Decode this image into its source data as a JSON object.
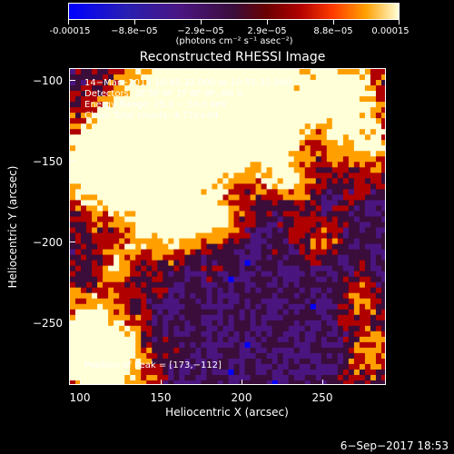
{
  "colorbar": {
    "tick_labels": [
      "-0.00015",
      "−8.8e−05",
      "−2.9e−05",
      "2.9e−05",
      "8.8e−05",
      "0.00015"
    ],
    "units": "(photons cm⁻² s⁻¹ asec⁻²)",
    "colors": [
      "#0000ff",
      "#4b1580",
      "#3a0d3a",
      "#b00000",
      "#ffa000",
      "#ffffd8"
    ]
  },
  "title": "Reconstructed RHESSI Image",
  "info_lines": [
    "14−Mar−2015 10:45:32.000 to 10:55:32.000",
    "Detectors: 3F 5F 6F 7F 8F 9F, Att 0",
    "Energy Range: 25.0 − 50.0 keV",
    "Clean    Total counts: 4.77e+04"
  ],
  "peak_label": "Position of Peak = [173,−112]",
  "x_axis": {
    "title": "Heliocentric X (arcsec)",
    "ticks": [
      "100",
      "150",
      "200",
      "250"
    ]
  },
  "y_axis": {
    "title": "Heliocentric Y (arcsec)",
    "ticks": [
      "−100",
      "−150",
      "−200",
      "−250"
    ]
  },
  "timestamp": "6−Sep−2017 18:53"
}
